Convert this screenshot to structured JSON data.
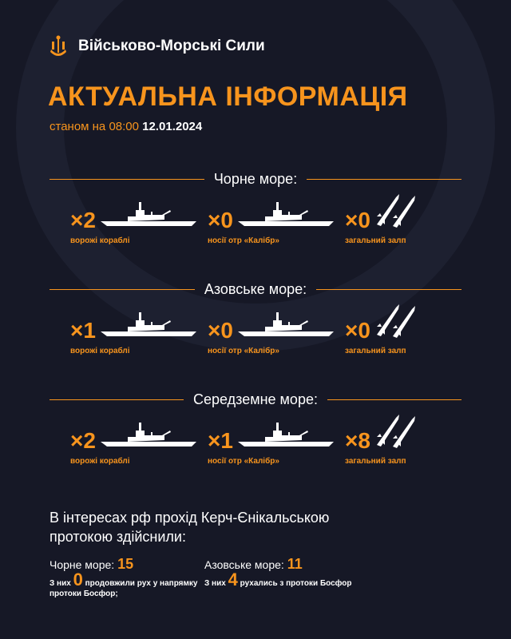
{
  "header": {
    "org": "Військово-Морські Сили",
    "logo": "trident-anchor-icon"
  },
  "title": "АКТУАЛЬНА ІНФОРМАЦІЯ",
  "date": {
    "prefix": "станом на 08:00",
    "date": "12.01.2024"
  },
  "colors": {
    "accent": "#f7941d",
    "background": "#161826"
  },
  "sections": [
    {
      "name": "Чорне море:",
      "items": [
        {
          "count": "×2",
          "label": "ворожі кораблі",
          "icon": "warship-icon"
        },
        {
          "count": "×0",
          "label": "носії отр «Калібр»",
          "icon": "warship-icon"
        },
        {
          "count": "×0",
          "label": "загальний залп",
          "icon": "missiles-icon"
        }
      ]
    },
    {
      "name": "Азовське море:",
      "items": [
        {
          "count": "×1",
          "label": "ворожі кораблі",
          "icon": "warship-icon"
        },
        {
          "count": "×0",
          "label": "носії отр «Калібр»",
          "icon": "warship-icon"
        },
        {
          "count": "×0",
          "label": "загальний залп",
          "icon": "missiles-icon"
        }
      ]
    },
    {
      "name": "Середземне море:",
      "items": [
        {
          "count": "×2",
          "label": "ворожі кораблі",
          "icon": "warship-icon"
        },
        {
          "count": "×1",
          "label": "носії отр «Калібр»",
          "icon": "warship-icon"
        },
        {
          "count": "×8",
          "label": "загальний залп",
          "icon": "missiles-icon"
        }
      ]
    }
  ],
  "passage": {
    "text": "В інтересах рф прохід Керч-Єнікальською протокою здійснили:",
    "black": {
      "label": "Чорне море:",
      "value": "15",
      "pre": "З них",
      "num": "0",
      "post": "продовжили рух у напрямку протоки Босфор;"
    },
    "azov": {
      "label": "Азовське море:",
      "value": "11",
      "pre": "З них",
      "num": "4",
      "post": "рухались з протоки Босфор"
    }
  }
}
